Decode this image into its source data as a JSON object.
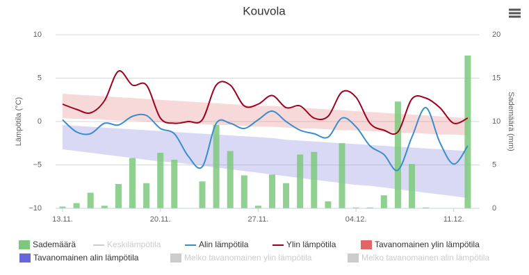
{
  "chart_data": {
    "type": "combo",
    "title": "Kouvola",
    "y_label": "Lämpötila (°C)",
    "y2_label": "Sademäärä (mm)",
    "categories": [
      "13.11.",
      null,
      null,
      null,
      null,
      null,
      null,
      "20.11.",
      null,
      null,
      null,
      null,
      null,
      null,
      "27.11.",
      null,
      null,
      null,
      null,
      null,
      null,
      "04.12.",
      null,
      null,
      null,
      null,
      null,
      null,
      "11.12.",
      null
    ],
    "ylim": [
      -10,
      10
    ],
    "yticks": [
      {
        "value": -10,
        "label": "−10"
      },
      {
        "value": -5,
        "label": "−5"
      },
      0,
      5,
      10
    ],
    "y2lim": [
      0,
      20
    ],
    "y2ticks": [
      0,
      5,
      10,
      15,
      20
    ],
    "grid": true,
    "series": [
      {
        "name": "Sademäärä",
        "type": "column",
        "axis": "y2",
        "color": "#7cc87c",
        "visible": true,
        "values": [
          0.2,
          0.6,
          1.8,
          0.3,
          2.8,
          5.8,
          2.9,
          6.4,
          5.6,
          0,
          3.1,
          9.6,
          6.6,
          3.8,
          0.3,
          3.9,
          2.9,
          6.2,
          6.5,
          0.8,
          7.5,
          0.1,
          0.1,
          1.5,
          12.3,
          5.1,
          0.1,
          0,
          0,
          17.6
        ]
      },
      {
        "name": "Keskilämpötila",
        "type": "line",
        "color": "#cccccc",
        "visible": false
      },
      {
        "name": "Alin lämpötila",
        "type": "line",
        "color": "#3a8ccd",
        "visible": true,
        "values": [
          0.2,
          -1.2,
          -1.4,
          -0.2,
          -0.4,
          0.6,
          0.7,
          -0.8,
          -1.4,
          -4.0,
          -5.2,
          -0.2,
          -0.2,
          -0.8,
          0.2,
          1.2,
          0,
          -1.0,
          -1.4,
          -1.8,
          0.4,
          -0.6,
          -2.8,
          -3.8,
          -5.6,
          -1.8,
          1.6,
          -2.4,
          -4.9,
          -2.8
        ]
      },
      {
        "name": "Ylin lämpötila",
        "type": "line",
        "color": "#a0001c",
        "visible": true,
        "values": [
          2.0,
          1.4,
          1.0,
          2.4,
          5.8,
          4.2,
          4.2,
          0.4,
          -0.2,
          0,
          0.2,
          4.2,
          4.2,
          1.8,
          2.0,
          3.0,
          1.6,
          1.8,
          0.4,
          0.6,
          3.4,
          2.8,
          -0.2,
          -1.0,
          -1.2,
          2.6,
          2.7,
          1.6,
          -0.2,
          0.4
        ]
      },
      {
        "name": "Tavanomainen ylin lämpötila",
        "type": "arearange",
        "color": "#e06666",
        "visible": true,
        "low": [
          0.4,
          0.3,
          0.3,
          0.2,
          0.1,
          0.1,
          0.0,
          -0.1,
          -0.2,
          -0.2,
          -0.3,
          -0.4,
          -0.4,
          -0.5,
          -0.6,
          -0.6,
          -0.7,
          -0.8,
          -0.8,
          -0.9,
          -1.0,
          -1.0,
          -1.1,
          -1.2,
          -1.3,
          -1.3,
          -1.4,
          -1.5,
          -1.5,
          -1.6
        ],
        "high": [
          3.2,
          3.1,
          3.0,
          2.9,
          2.8,
          2.7,
          2.6,
          2.5,
          2.4,
          2.3,
          2.2,
          2.1,
          2.0,
          1.9,
          1.8,
          1.8,
          1.7,
          1.6,
          1.5,
          1.4,
          1.3,
          1.2,
          1.1,
          1.0,
          0.9,
          0.8,
          0.7,
          0.6,
          0.5,
          0.4
        ]
      },
      {
        "name": "Tavanomainen alin lämpötila",
        "type": "arearange",
        "color": "#6666dd",
        "visible": true,
        "low": [
          -3.2,
          -3.4,
          -3.6,
          -3.8,
          -4.0,
          -4.2,
          -4.4,
          -4.6,
          -4.7,
          -4.9,
          -5.1,
          -5.3,
          -5.5,
          -5.7,
          -5.9,
          -6.1,
          -6.3,
          -6.5,
          -6.7,
          -6.9,
          -7.1,
          -7.3,
          -7.4,
          -7.6,
          -7.8,
          -8.0,
          -8.2,
          -8.4,
          -8.6,
          -8.8
        ],
        "high": [
          -0.4,
          -0.5,
          -0.6,
          -0.7,
          -0.8,
          -0.9,
          -1.0,
          -1.1,
          -1.2,
          -1.3,
          -1.4,
          -1.5,
          -1.6,
          -1.7,
          -1.8,
          -1.9,
          -2.1,
          -2.2,
          -2.3,
          -2.4,
          -2.5,
          -2.6,
          -2.7,
          -2.8,
          -2.9,
          -3.0,
          -3.1,
          -3.2,
          -3.3,
          -3.4
        ]
      },
      {
        "name": "Melko tavanomainen ylin lämpötila",
        "type": "arearange",
        "color": "#cccccc",
        "visible": false
      },
      {
        "name": "Melko tavanomainen alin lämpötila",
        "type": "arearange",
        "color": "#cccccc",
        "visible": false
      }
    ]
  }
}
